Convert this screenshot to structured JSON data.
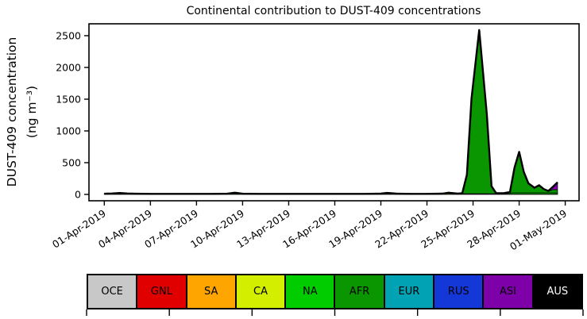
{
  "figure": {
    "background": "#ffffff",
    "axes_color": "#000000"
  },
  "chart_data": {
    "type": "area",
    "title": "Continental contribution to DUST-409 concentrations",
    "ylabel_line1": "DUST-409 concentration",
    "ylabel_line2": "(ng m⁻³)",
    "yticks": [
      0,
      500,
      1000,
      1500,
      2000,
      2500
    ],
    "ylim": [
      -100,
      2687
    ],
    "xlim_days": [
      -1,
      30.9
    ],
    "grid": false,
    "legend_position": "bottom-strip",
    "total_line_color": "#000000",
    "xticks": [
      {
        "day": 0,
        "label": "01-Apr-2019"
      },
      {
        "day": 3,
        "label": "04-Apr-2019"
      },
      {
        "day": 6,
        "label": "07-Apr-2019"
      },
      {
        "day": 9,
        "label": "10-Apr-2019"
      },
      {
        "day": 12,
        "label": "13-Apr-2019"
      },
      {
        "day": 15,
        "label": "16-Apr-2019"
      },
      {
        "day": 18,
        "label": "19-Apr-2019"
      },
      {
        "day": 21,
        "label": "22-Apr-2019"
      },
      {
        "day": 24,
        "label": "25-Apr-2019"
      },
      {
        "day": 27,
        "label": "28-Apr-2019"
      },
      {
        "day": 30,
        "label": "01-May-2019"
      }
    ],
    "x_days": [
      0,
      0.5,
      1,
      1.5,
      2,
      3,
      4,
      5,
      6,
      7,
      8,
      8.5,
      9,
      10,
      11,
      12,
      13,
      14,
      15,
      16,
      17,
      18,
      18.4,
      19,
      20,
      21,
      22,
      22.4,
      23,
      23.3,
      23.6,
      23.9,
      24.4,
      24.9,
      25.2,
      25.5,
      26,
      26.4,
      26.7,
      27,
      27.3,
      27.6,
      28,
      28.3,
      28.6,
      28.9,
      29.2,
      29.5
    ],
    "series": [
      {
        "name": "OCE",
        "color": "#c8c8c8",
        "text_color": "#000000",
        "values": [
          5,
          5,
          5,
          5,
          5,
          5,
          5,
          5,
          5,
          5,
          5,
          5,
          5,
          5,
          5,
          5,
          5,
          5,
          5,
          5,
          5,
          5,
          5,
          5,
          5,
          5,
          5,
          5,
          5,
          5,
          5,
          5,
          5,
          5,
          5,
          5,
          5,
          5,
          5,
          5,
          5,
          5,
          5,
          5,
          5,
          5,
          5,
          5
        ]
      },
      {
        "name": "GNL",
        "color": "#e00000",
        "text_color": "#000000",
        "values": [
          0,
          0,
          0,
          0,
          0,
          0,
          0,
          0,
          0,
          0,
          0,
          0,
          0,
          0,
          0,
          0,
          0,
          0,
          0,
          0,
          0,
          0,
          0,
          0,
          0,
          0,
          0,
          0,
          0,
          0,
          0,
          0,
          0,
          0,
          0,
          0,
          0,
          0,
          0,
          0,
          0,
          0,
          0,
          0,
          0,
          0,
          0,
          0
        ]
      },
      {
        "name": "SA",
        "color": "#ffa500",
        "text_color": "#000000",
        "values": [
          0,
          0,
          0,
          0,
          0,
          0,
          0,
          0,
          0,
          0,
          0,
          0,
          0,
          0,
          0,
          0,
          0,
          0,
          0,
          0,
          0,
          0,
          0,
          0,
          0,
          0,
          0,
          0,
          0,
          0,
          0,
          0,
          0,
          0,
          0,
          0,
          0,
          0,
          0,
          0,
          0,
          0,
          0,
          0,
          0,
          0,
          0,
          0
        ]
      },
      {
        "name": "CA",
        "color": "#d4ee00",
        "text_color": "#000000",
        "values": [
          0,
          0,
          0,
          0,
          0,
          0,
          0,
          0,
          0,
          0,
          0,
          0,
          0,
          0,
          0,
          0,
          0,
          0,
          0,
          0,
          0,
          3,
          15,
          3,
          0,
          0,
          4,
          18,
          4,
          0,
          0,
          0,
          0,
          0,
          0,
          0,
          0,
          0,
          0,
          0,
          0,
          0,
          0,
          0,
          0,
          0,
          0,
          0
        ]
      },
      {
        "name": "NA",
        "color": "#00cc00",
        "text_color": "#000000",
        "values": [
          6,
          10,
          18,
          10,
          6,
          4,
          4,
          4,
          4,
          4,
          6,
          22,
          6,
          4,
          4,
          4,
          4,
          4,
          4,
          4,
          4,
          4,
          4,
          4,
          4,
          4,
          4,
          4,
          4,
          5,
          5,
          5,
          5,
          5,
          5,
          5,
          5,
          18,
          20,
          20,
          20,
          20,
          20,
          20,
          20,
          20,
          20,
          20
        ]
      },
      {
        "name": "AFR",
        "color": "#0a9600",
        "text_color": "#000000",
        "values": [
          0,
          0,
          0,
          0,
          0,
          0,
          0,
          0,
          0,
          0,
          0,
          0,
          0,
          0,
          0,
          0,
          0,
          0,
          0,
          0,
          0,
          0,
          0,
          0,
          0,
          0,
          0,
          0,
          0,
          10,
          300,
          1500,
          2580,
          1250,
          120,
          10,
          10,
          15,
          400,
          645,
          330,
          150,
          80,
          120,
          60,
          25,
          50,
          50
        ]
      },
      {
        "name": "EUR",
        "color": "#00a2b3",
        "text_color": "#000000",
        "values": [
          0,
          0,
          0,
          0,
          0,
          0,
          0,
          0,
          0,
          0,
          0,
          0,
          0,
          0,
          0,
          0,
          0,
          0,
          0,
          0,
          0,
          0,
          0,
          0,
          0,
          0,
          0,
          0,
          0,
          0,
          0,
          0,
          0,
          0,
          0,
          0,
          0,
          0,
          0,
          0,
          0,
          0,
          0,
          0,
          0,
          0,
          0,
          0
        ]
      },
      {
        "name": "RUS",
        "color": "#1437d8",
        "text_color": "#000000",
        "values": [
          0,
          0,
          0,
          0,
          0,
          0,
          0,
          0,
          0,
          0,
          0,
          0,
          0,
          0,
          0,
          0,
          0,
          0,
          0,
          0,
          0,
          0,
          0,
          0,
          0,
          0,
          0,
          0,
          0,
          0,
          0,
          0,
          0,
          0,
          0,
          0,
          0,
          0,
          0,
          0,
          0,
          0,
          0,
          0,
          0,
          0,
          0,
          0
        ]
      },
      {
        "name": "ASI",
        "color": "#7d00a8",
        "text_color": "#000000",
        "values": [
          0,
          0,
          0,
          0,
          0,
          0,
          0,
          0,
          0,
          0,
          0,
          0,
          0,
          0,
          0,
          0,
          0,
          0,
          0,
          0,
          0,
          0,
          0,
          0,
          0,
          0,
          0,
          0,
          0,
          0,
          0,
          0,
          0,
          0,
          0,
          0,
          0,
          0,
          0,
          0,
          0,
          0,
          0,
          0,
          0,
          5,
          45,
          115
        ]
      },
      {
        "name": "AUS",
        "color": "#000000",
        "text_color": "#ffffff",
        "values": [
          0,
          0,
          0,
          0,
          0,
          0,
          0,
          0,
          0,
          0,
          0,
          0,
          0,
          0,
          0,
          0,
          0,
          0,
          0,
          0,
          0,
          0,
          0,
          0,
          0,
          0,
          0,
          0,
          0,
          0,
          0,
          0,
          0,
          0,
          0,
          0,
          0,
          0,
          0,
          0,
          0,
          0,
          0,
          0,
          0,
          0,
          0,
          0
        ]
      }
    ]
  }
}
